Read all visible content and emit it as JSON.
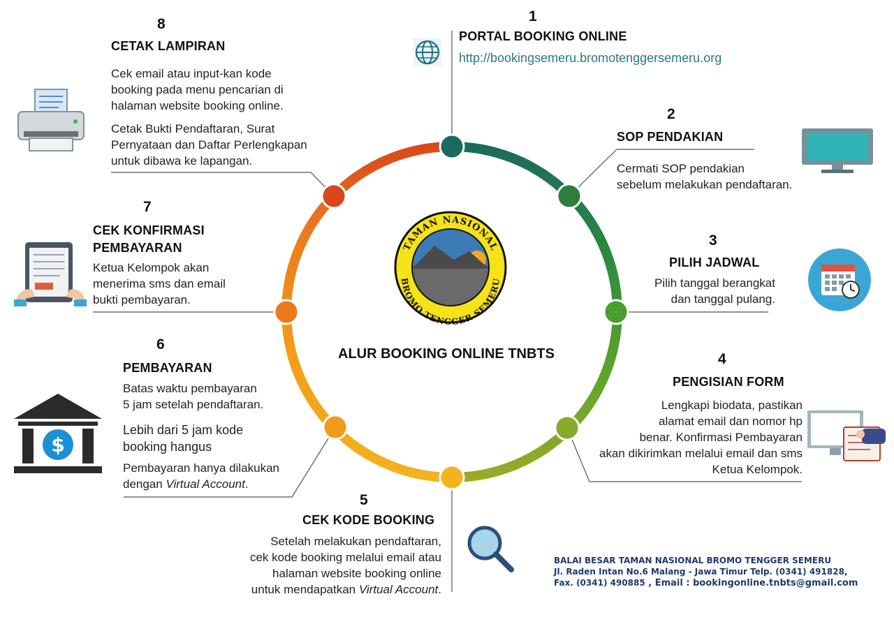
{
  "center": {
    "title": "ALUR BOOKING ONLINE TNBTS",
    "logo_top": "TAMAN NASIONAL",
    "logo_bottom": "BROMO TENGGER SEMERU"
  },
  "steps": [
    {
      "num": "1",
      "title": "PORTAL BOOKING ONLINE",
      "url": "http://bookingsemeru.bromotenggersemeru.org",
      "icon": "globe-icon",
      "color": "#1a6b5e"
    },
    {
      "num": "2",
      "title": "SOP PENDAKIAN",
      "lines": [
        "Cermati SOP pendakian",
        "sebelum melakukan pendaftaran."
      ],
      "icon": "monitor-icon",
      "color": "#2e8b3e"
    },
    {
      "num": "3",
      "title": "PILIH JADWAL",
      "lines": [
        "Pilih tanggal berangkat",
        "dan tanggal pulang."
      ],
      "icon": "calendar-icon",
      "color": "#4a9e2f"
    },
    {
      "num": "4",
      "title": "PENGISIAN FORM",
      "lines": [
        "Lengkapi biodata, pastikan",
        "alamat email dan nomor hp",
        "benar.  Konfirmasi Pembayaran",
        "akan dikirimkan melalui email dan sms",
        "Ketua Kelompok."
      ],
      "icon": "form-icon",
      "color": "#8aa82a"
    },
    {
      "num": "5",
      "title": "CEK KODE BOOKING",
      "lines": [
        "Setelah melakukan pendaftaran,",
        "cek kode booking melalui email atau",
        "halaman website booking online"
      ],
      "line_last_prefix": "untuk mendapatkan ",
      "line_last_italic": "Virtual Account",
      "line_last_suffix": ".",
      "icon": "magnifier-icon",
      "color": "#f0a020"
    },
    {
      "num": "6",
      "title": "PEMBAYARAN",
      "lines": [
        "Batas waktu pembayaran",
        "5 jam setelah pendaftaran."
      ],
      "lines2": [
        "Lebih dari 5 jam kode",
        "booking hangus"
      ],
      "line3a": "Pembayaran hanya dilakukan",
      "line3b_prefix": "dengan ",
      "line3b_italic": "Virtual Account",
      "line3b_suffix": ".",
      "icon": "bank-icon",
      "color": "#f08a1a"
    },
    {
      "num": "7",
      "title_l1": "CEK KONFIRMASI",
      "title_l2": "PEMBAYARAN",
      "lines": [
        "Ketua Kelompok akan",
        "menerima sms dan email",
        "bukti pembayaran."
      ],
      "icon": "tablet-icon",
      "color": "#e8651a"
    },
    {
      "num": "8",
      "title": "CETAK LAMPIRAN",
      "lines": [
        "Cek email atau input-kan kode",
        "booking pada menu pencarian di",
        "halaman website booking online."
      ],
      "lines2": [
        "Cetak Bukti Pendaftaran, Surat",
        "Pernyataan dan Daftar Perlengkapan",
        "untuk dibawa ke lapangan."
      ],
      "icon": "printer-icon",
      "color": "#d84a1c"
    }
  ],
  "footer": {
    "line1": "BALAI BESAR TAMAN NASIONAL BROMO TENGGER SEMERU",
    "line2": "Jl. Raden Intan No.6 Malang - Jawa Timur Telp. (0341) 491828,",
    "line3a": "Fax. (0341) 490885",
    "line3b": " , Email : bookingonline.tnbts@gmail.com"
  }
}
